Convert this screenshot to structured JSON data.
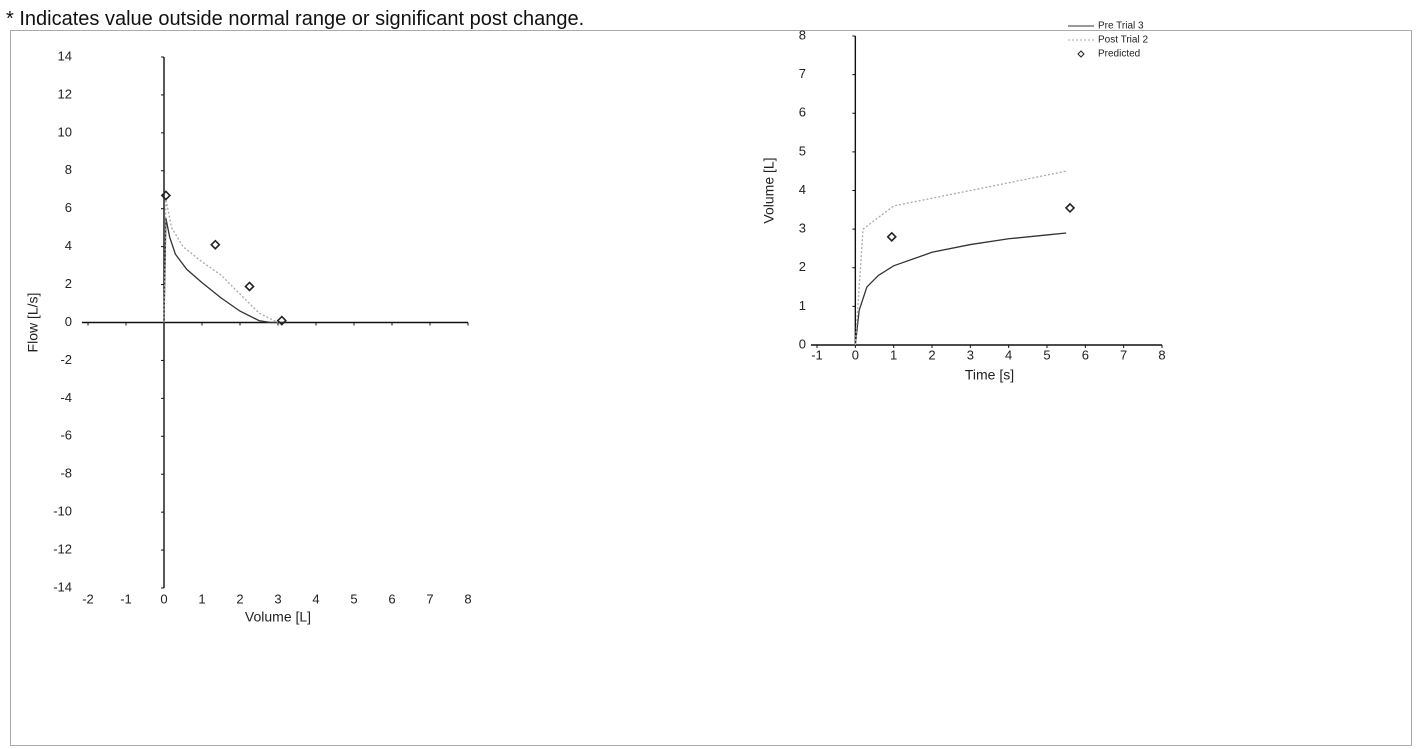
{
  "header": {
    "note": "* Indicates value outside normal range or significant post change."
  },
  "chart_data": [
    {
      "type": "line",
      "x_label": "Volume [L]",
      "y_label": "Flow [L/s]",
      "xlim": [
        -2,
        8
      ],
      "xticks": [
        -2,
        -1,
        0,
        1,
        2,
        3,
        4,
        5,
        6,
        7,
        8
      ],
      "ylim": [
        -14,
        14
      ],
      "yticks": [
        -14,
        -12,
        -10,
        -8,
        -6,
        -4,
        -2,
        0,
        2,
        4,
        6,
        8,
        10,
        12,
        14
      ],
      "series": [
        {
          "style": "solid",
          "color": "#333333",
          "x": [
            0,
            0.05,
            0.15,
            0.3,
            0.6,
            1,
            1.5,
            2,
            2.5,
            2.8,
            3.2
          ],
          "values": [
            0,
            5.5,
            4.5,
            3.6,
            2.8,
            2.1,
            1.3,
            0.6,
            0.1,
            0,
            0
          ]
        },
        {
          "style": "dotted",
          "color": "#aaaaaa",
          "x": [
            0,
            0.05,
            0.2,
            0.5,
            1,
            1.5,
            2,
            2.5,
            3
          ],
          "values": [
            0,
            6.5,
            5,
            4,
            3.2,
            2.5,
            1.5,
            0.5,
            0
          ]
        },
        {
          "style": "marker",
          "color": "#222222",
          "x": [
            0.05,
            1.35,
            2.25,
            3.1
          ],
          "values": [
            6.7,
            4.1,
            1.9,
            0.1
          ]
        }
      ]
    },
    {
      "type": "line",
      "x_label": "Time [s]",
      "y_label": "Volume [L]",
      "xlim": [
        -1,
        8
      ],
      "xticks": [
        -1,
        0,
        1,
        2,
        3,
        4,
        5,
        6,
        7,
        8
      ],
      "ylim": [
        0,
        8
      ],
      "yticks": [
        0,
        1,
        2,
        3,
        4,
        5,
        6,
        7,
        8
      ],
      "legend": "upper right",
      "series": [
        {
          "name": "Pre Trial 3",
          "style": "solid",
          "color": "#333333",
          "x": [
            0,
            0.1,
            0.3,
            0.6,
            1,
            2,
            3,
            4,
            5,
            5.5
          ],
          "values": [
            0,
            0.9,
            1.5,
            1.8,
            2.05,
            2.4,
            2.6,
            2.75,
            2.85,
            2.9
          ]
        },
        {
          "name": "Post Trial 2",
          "style": "dotted",
          "color": "#aaaaaa",
          "x": [
            0,
            0.2,
            1,
            2,
            3,
            4,
            5,
            5.5
          ],
          "values": [
            0,
            3.0,
            3.6,
            3.8,
            4.0,
            4.2,
            4.4,
            4.5
          ]
        },
        {
          "name": "Predicted",
          "style": "marker",
          "color": "#222222",
          "x": [
            0.95,
            5.6
          ],
          "values": [
            2.8,
            3.55
          ]
        }
      ]
    }
  ]
}
